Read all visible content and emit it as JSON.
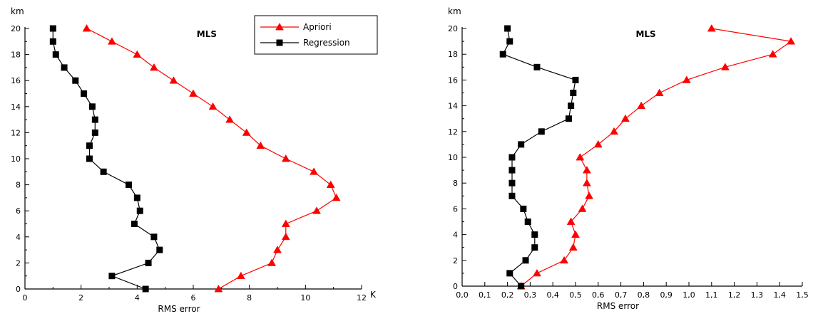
{
  "chart_data": [
    {
      "type": "line",
      "title": "MLS",
      "xlabel": "RMS error",
      "x_unit": "K",
      "ylabel": "km",
      "xlim": [
        0,
        12
      ],
      "ylim": [
        0,
        20
      ],
      "xticks": [
        0,
        2,
        4,
        6,
        8,
        10,
        12
      ],
      "xtick_labels": [
        "0",
        "2",
        "4",
        "6",
        "8",
        "10",
        "12"
      ],
      "yticks": [
        0,
        2,
        4,
        6,
        8,
        10,
        12,
        14,
        16,
        18,
        20
      ],
      "ytick_labels": [
        "0",
        "2",
        "4",
        "6",
        "8",
        "10",
        "12",
        "14",
        "16",
        "18",
        "20"
      ],
      "grid": false,
      "legend_position": "top-right",
      "series": [
        {
          "name": "Apriori",
          "color": "#ff0000",
          "marker": "triangle",
          "points": [
            [
              6.9,
              0
            ],
            [
              7.7,
              1
            ],
            [
              8.8,
              2
            ],
            [
              9.0,
              3
            ],
            [
              9.3,
              4
            ],
            [
              9.3,
              5
            ],
            [
              10.4,
              6
            ],
            [
              11.1,
              7
            ],
            [
              10.9,
              8
            ],
            [
              10.3,
              9
            ],
            [
              9.3,
              10
            ],
            [
              8.4,
              11
            ],
            [
              7.9,
              12
            ],
            [
              7.3,
              13
            ],
            [
              6.7,
              14
            ],
            [
              6.0,
              15
            ],
            [
              5.3,
              16
            ],
            [
              4.6,
              17
            ],
            [
              4.0,
              18
            ],
            [
              3.1,
              19
            ],
            [
              2.2,
              20
            ]
          ]
        },
        {
          "name": "Regression",
          "color": "#000000",
          "marker": "square",
          "points": [
            [
              4.3,
              0
            ],
            [
              3.1,
              1
            ],
            [
              4.4,
              2
            ],
            [
              4.8,
              3
            ],
            [
              4.6,
              4
            ],
            [
              3.9,
              5
            ],
            [
              4.1,
              6
            ],
            [
              4.0,
              7
            ],
            [
              3.7,
              8
            ],
            [
              2.8,
              9
            ],
            [
              2.3,
              10
            ],
            [
              2.3,
              11
            ],
            [
              2.5,
              12
            ],
            [
              2.5,
              13
            ],
            [
              2.4,
              14
            ],
            [
              2.1,
              15
            ],
            [
              1.8,
              16
            ],
            [
              1.4,
              17
            ],
            [
              1.1,
              18
            ],
            [
              1.0,
              19
            ],
            [
              1.0,
              20
            ]
          ]
        }
      ]
    },
    {
      "type": "line",
      "title": "MLS",
      "xlabel": "RMS error",
      "ylabel": "km",
      "xlim": [
        0,
        1.5
      ],
      "ylim": [
        0,
        20
      ],
      "xticks": [
        0,
        0.1,
        0.2,
        0.3,
        0.4,
        0.5,
        0.6,
        0.7,
        0.8,
        0.9,
        1.0,
        1.1,
        1.2,
        1.3,
        1.4,
        1.5
      ],
      "xtick_labels": [
        "0,0",
        "0,1",
        "0,2",
        "0,3",
        "0,4",
        "0,5",
        "0,6",
        "0,7",
        "0,8",
        "0,9",
        "1,0",
        "1,1",
        "1,2",
        "1,3",
        "1,4",
        "1,5"
      ],
      "yticks": [
        0,
        2,
        4,
        6,
        8,
        10,
        12,
        14,
        16,
        18,
        20
      ],
      "ytick_labels": [
        "0",
        "2",
        "4",
        "6",
        "8",
        "10",
        "12",
        "14",
        "16",
        "18",
        "20"
      ],
      "grid": false,
      "legend_position": "none",
      "series": [
        {
          "name": "Apriori",
          "color": "#ff0000",
          "marker": "triangle",
          "points": [
            [
              0.26,
              0
            ],
            [
              0.33,
              1
            ],
            [
              0.45,
              2
            ],
            [
              0.49,
              3
            ],
            [
              0.5,
              4
            ],
            [
              0.48,
              5
            ],
            [
              0.53,
              6
            ],
            [
              0.56,
              7
            ],
            [
              0.55,
              8
            ],
            [
              0.55,
              9
            ],
            [
              0.52,
              10
            ],
            [
              0.6,
              11
            ],
            [
              0.67,
              12
            ],
            [
              0.72,
              13
            ],
            [
              0.79,
              14
            ],
            [
              0.87,
              15
            ],
            [
              0.99,
              16
            ],
            [
              1.16,
              17
            ],
            [
              1.37,
              18
            ],
            [
              1.45,
              19
            ],
            [
              1.1,
              20
            ]
          ]
        },
        {
          "name": "Regression",
          "color": "#000000",
          "marker": "square",
          "points": [
            [
              0.26,
              0
            ],
            [
              0.21,
              1
            ],
            [
              0.28,
              2
            ],
            [
              0.32,
              3
            ],
            [
              0.32,
              4
            ],
            [
              0.29,
              5
            ],
            [
              0.27,
              6
            ],
            [
              0.22,
              7
            ],
            [
              0.22,
              8
            ],
            [
              0.22,
              9
            ],
            [
              0.22,
              10
            ],
            [
              0.26,
              11
            ],
            [
              0.35,
              12
            ],
            [
              0.47,
              13
            ],
            [
              0.48,
              14
            ],
            [
              0.49,
              15
            ],
            [
              0.5,
              16
            ],
            [
              0.33,
              17
            ],
            [
              0.18,
              18
            ],
            [
              0.21,
              19
            ],
            [
              0.2,
              20
            ]
          ]
        }
      ]
    }
  ]
}
